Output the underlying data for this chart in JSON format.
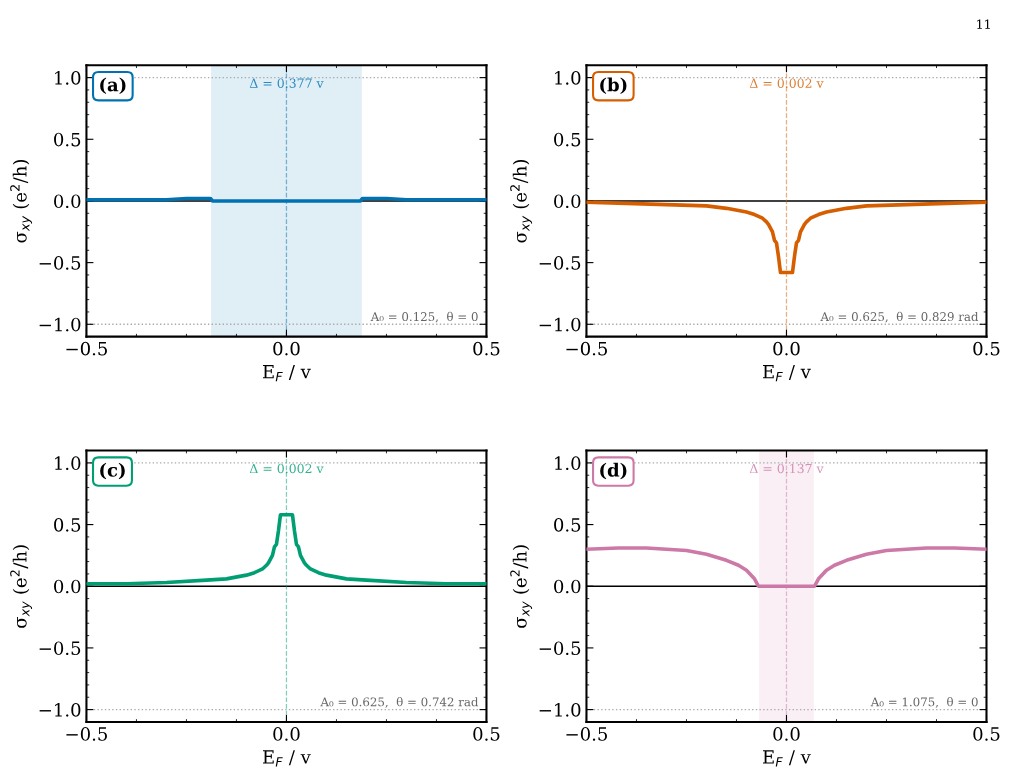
{
  "chart_data": [
    {
      "type": "line",
      "title": "(a)",
      "xlabel": "E$_{F}$ / v",
      "ylabel": "σ$_{xy}$ (e$^{2}$/h)",
      "xlim": [
        -0.5,
        0.5
      ],
      "xticks": [
        {
          "value": -0.5,
          "label": "−0.5"
        },
        {
          "value": 0,
          "label": "0.0"
        },
        {
          "value": 0.5,
          "label": "0.5"
        }
      ],
      "ylim": [
        -1.1,
        1.1
      ],
      "yticks": [
        {
          "value": -1,
          "label": "−1.0"
        },
        {
          "value": -0.5,
          "label": "−0.5"
        },
        {
          "value": 0,
          "label": "0.0"
        },
        {
          "value": 0.5,
          "label": "0.5"
        },
        {
          "value": 1,
          "label": "1.0"
        }
      ],
      "grid": false,
      "marker": "none",
      "line_style": "solid",
      "series": [
        {
          "color": "#0072b2",
          "x": [
            -0.5,
            -0.4,
            -0.3,
            -0.25,
            -0.2,
            -0.19,
            -0.185,
            0.185,
            0.19,
            0.2,
            0.25,
            0.3,
            0.4,
            0.5
          ],
          "values": [
            0.01,
            0.01,
            0.01,
            0.02,
            0.02,
            0.02,
            0.0,
            0.0,
            0.02,
            0.02,
            0.02,
            0.01,
            0.01,
            0.01
          ]
        }
      ],
      "bands": [
        {
          "axis": "x",
          "from": -0.1885,
          "to": 0.1885,
          "color": "#0072b2"
        }
      ],
      "ref_lines": [
        {
          "axis": "y",
          "value": 0,
          "color": "#000000",
          "line_style": "solid"
        },
        {
          "axis": "y",
          "value": 1,
          "color": "#aaaaaa",
          "line_style": "dotted"
        },
        {
          "axis": "y",
          "value": -1,
          "color": "#aaaaaa",
          "line_style": "dotted"
        },
        {
          "axis": "x",
          "value": 0,
          "color": "#0072b2",
          "line_style": "dashed"
        }
      ],
      "annotations": [
        "Δ = 0.377 v",
        "A₀ = 0.125,  θ = 0",
        "11"
      ]
    },
    {
      "type": "line",
      "title": "(b)",
      "xlabel": "E$_{F}$ / v",
      "ylabel": "σ$_{xy}$ (e$^{2}$/h)",
      "xlim": [
        -0.5,
        0.5
      ],
      "xticks": [
        {
          "value": -0.5,
          "label": "−0.5"
        },
        {
          "value": 0,
          "label": "0.0"
        },
        {
          "value": 0.5,
          "label": "0.5"
        }
      ],
      "ylim": [
        -1.1,
        1.1
      ],
      "yticks": [
        {
          "value": -1,
          "label": "−1.0"
        },
        {
          "value": -0.5,
          "label": "−0.5"
        },
        {
          "value": 0,
          "label": "0.0"
        },
        {
          "value": 0.5,
          "label": "0.5"
        },
        {
          "value": 1,
          "label": "1.0"
        }
      ],
      "grid": false,
      "marker": "none",
      "line_style": "solid",
      "series": [
        {
          "color": "#d55e00",
          "x": [
            -0.5,
            -0.4,
            -0.3,
            -0.2,
            -0.15,
            -0.1,
            -0.08,
            -0.06,
            -0.05,
            -0.045,
            -0.04,
            -0.035,
            -0.03,
            -0.025,
            -0.02,
            -0.015,
            0.015,
            0.02,
            0.025,
            0.03,
            0.035,
            0.04,
            0.045,
            0.05,
            0.06,
            0.08,
            0.1,
            0.15,
            0.2,
            0.3,
            0.4,
            0.5
          ],
          "values": [
            -0.01,
            -0.02,
            -0.03,
            -0.04,
            -0.06,
            -0.09,
            -0.11,
            -0.14,
            -0.17,
            -0.19,
            -0.22,
            -0.25,
            -0.32,
            -0.34,
            -0.45,
            -0.58,
            -0.58,
            -0.45,
            -0.34,
            -0.32,
            -0.25,
            -0.22,
            -0.19,
            -0.17,
            -0.14,
            -0.11,
            -0.09,
            -0.06,
            -0.04,
            -0.03,
            -0.02,
            -0.01
          ]
        }
      ],
      "ref_lines": [
        {
          "axis": "y",
          "value": 0,
          "color": "#000000",
          "line_style": "solid"
        },
        {
          "axis": "y",
          "value": 1,
          "color": "#aaaaaa",
          "line_style": "dotted"
        },
        {
          "axis": "y",
          "value": -1,
          "color": "#aaaaaa",
          "line_style": "dotted"
        },
        {
          "axis": "x",
          "value": 0,
          "color": "#d55e00",
          "line_style": "dashed"
        }
      ],
      "annotations": [
        "Δ = 0.002 v",
        "A₀ = 0.625,  θ = 0.829 rad"
      ]
    },
    {
      "type": "line",
      "title": "(c)",
      "xlabel": "E$_{F}$ / v",
      "ylabel": "σ$_{xy}$ (e$^{2}$/h)",
      "xlim": [
        -0.5,
        0.5
      ],
      "xticks": [
        {
          "value": -0.5,
          "label": "−0.5"
        },
        {
          "value": 0,
          "label": "0.0"
        },
        {
          "value": 0.5,
          "label": "0.5"
        }
      ],
      "ylim": [
        -1.1,
        1.1
      ],
      "yticks": [
        {
          "value": -1,
          "label": "−1.0"
        },
        {
          "value": -0.5,
          "label": "−0.5"
        },
        {
          "value": 0,
          "label": "0.0"
        },
        {
          "value": 0.5,
          "label": "0.5"
        },
        {
          "value": 1,
          "label": "1.0"
        }
      ],
      "grid": false,
      "marker": "none",
      "line_style": "solid",
      "series": [
        {
          "color": "#009e73",
          "x": [
            -0.5,
            -0.4,
            -0.3,
            -0.2,
            -0.15,
            -0.1,
            -0.08,
            -0.06,
            -0.05,
            -0.045,
            -0.04,
            -0.035,
            -0.03,
            -0.025,
            -0.02,
            -0.015,
            0.015,
            0.02,
            0.025,
            0.03,
            0.035,
            0.04,
            0.045,
            0.05,
            0.06,
            0.08,
            0.1,
            0.15,
            0.2,
            0.3,
            0.4,
            0.5
          ],
          "values": [
            0.02,
            0.02,
            0.03,
            0.05,
            0.06,
            0.09,
            0.11,
            0.14,
            0.17,
            0.19,
            0.22,
            0.25,
            0.32,
            0.34,
            0.45,
            0.58,
            0.58,
            0.45,
            0.34,
            0.32,
            0.25,
            0.22,
            0.19,
            0.17,
            0.14,
            0.11,
            0.09,
            0.06,
            0.05,
            0.03,
            0.02,
            0.02
          ]
        }
      ],
      "ref_lines": [
        {
          "axis": "y",
          "value": 0,
          "color": "#000000",
          "line_style": "solid"
        },
        {
          "axis": "y",
          "value": 1,
          "color": "#aaaaaa",
          "line_style": "dotted"
        },
        {
          "axis": "y",
          "value": -1,
          "color": "#aaaaaa",
          "line_style": "dotted"
        },
        {
          "axis": "x",
          "value": 0,
          "color": "#009e73",
          "line_style": "dashed"
        }
      ],
      "annotations": [
        "Δ = 0.002 v",
        "A₀ = 0.625,  θ = 0.742 rad"
      ]
    },
    {
      "type": "line",
      "title": "(d)",
      "xlabel": "E$_{F}$ / v",
      "ylabel": "σ$_{xy}$ (e$^{2}$/h)",
      "xlim": [
        -0.5,
        0.5
      ],
      "xticks": [
        {
          "value": -0.5,
          "label": "−0.5"
        },
        {
          "value": 0,
          "label": "0.0"
        },
        {
          "value": 0.5,
          "label": "0.5"
        }
      ],
      "ylim": [
        -1.1,
        1.1
      ],
      "yticks": [
        {
          "value": -1,
          "label": "−1.0"
        },
        {
          "value": -0.5,
          "label": "−0.5"
        },
        {
          "value": 0,
          "label": "0.0"
        },
        {
          "value": 0.5,
          "label": "0.5"
        },
        {
          "value": 1,
          "label": "1.0"
        }
      ],
      "grid": false,
      "marker": "none",
      "line_style": "solid",
      "series": [
        {
          "color": "#cc79a7",
          "x": [
            -0.5,
            -0.42,
            -0.35,
            -0.3,
            -0.25,
            -0.2,
            -0.15,
            -0.12,
            -0.1,
            -0.08,
            -0.07,
            0.07,
            0.08,
            0.1,
            0.12,
            0.15,
            0.2,
            0.25,
            0.3,
            0.35,
            0.42,
            0.5
          ],
          "values": [
            0.3,
            0.31,
            0.31,
            0.3,
            0.29,
            0.26,
            0.21,
            0.17,
            0.13,
            0.06,
            0.0,
            0.0,
            0.06,
            0.13,
            0.17,
            0.21,
            0.26,
            0.29,
            0.3,
            0.31,
            0.31,
            0.3
          ]
        }
      ],
      "bands": [
        {
          "axis": "x",
          "from": -0.0685,
          "to": 0.0685,
          "color": "#cc79a7"
        }
      ],
      "ref_lines": [
        {
          "axis": "y",
          "value": 0,
          "color": "#000000",
          "line_style": "solid"
        },
        {
          "axis": "y",
          "value": 1,
          "color": "#aaaaaa",
          "line_style": "dotted"
        },
        {
          "axis": "y",
          "value": -1,
          "color": "#aaaaaa",
          "line_style": "dotted"
        },
        {
          "axis": "x",
          "value": 0,
          "color": "#cc79a7",
          "line_style": "dashed"
        }
      ],
      "annotations": [
        "Δ = 0.137 v",
        "A₀ = 1.075,  θ = 0"
      ]
    }
  ]
}
